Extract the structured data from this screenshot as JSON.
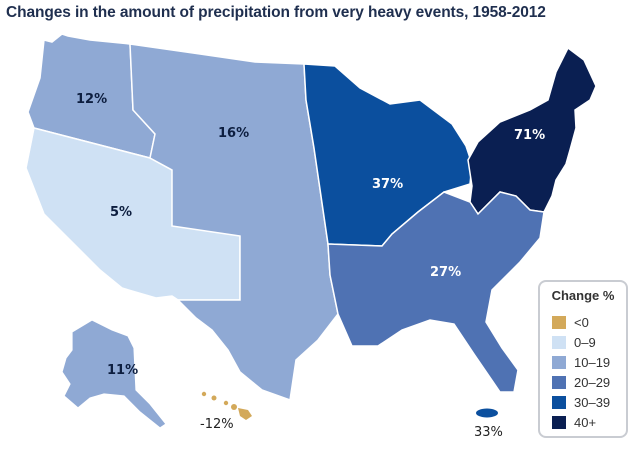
{
  "title": "Changes in the amount of precipitation from very heavy events, 1958-2012",
  "legend": {
    "title": "Change %",
    "items": [
      {
        "label": "<0",
        "color": "#d3a95a"
      },
      {
        "label": "0–9",
        "color": "#cfe1f4"
      },
      {
        "label": "10–19",
        "color": "#8fa9d4"
      },
      {
        "label": "20–29",
        "color": "#4f72b3"
      },
      {
        "label": "30–39",
        "color": "#0b4f9e"
      },
      {
        "label": "40+",
        "color": "#0a1f52"
      }
    ]
  },
  "regions": [
    {
      "name": "Northwest",
      "label": "12%",
      "color": "#8fa9d4"
    },
    {
      "name": "Southwest",
      "label": "5%",
      "color": "#cfe1f4"
    },
    {
      "name": "Great Plains",
      "label": "16%",
      "color": "#8fa9d4"
    },
    {
      "name": "Midwest",
      "label": "37%",
      "color": "#0b4f9e"
    },
    {
      "name": "Northeast",
      "label": "71%",
      "color": "#0a1f52"
    },
    {
      "name": "Southeast",
      "label": "27%",
      "color": "#4f72b3"
    },
    {
      "name": "Alaska",
      "label": "11%",
      "color": "#8fa9d4"
    },
    {
      "name": "Hawaii",
      "label": "-12%",
      "color": "#d3a95a"
    },
    {
      "name": "Puerto Rico",
      "label": "33%",
      "color": "#0b4f9e"
    }
  ]
}
